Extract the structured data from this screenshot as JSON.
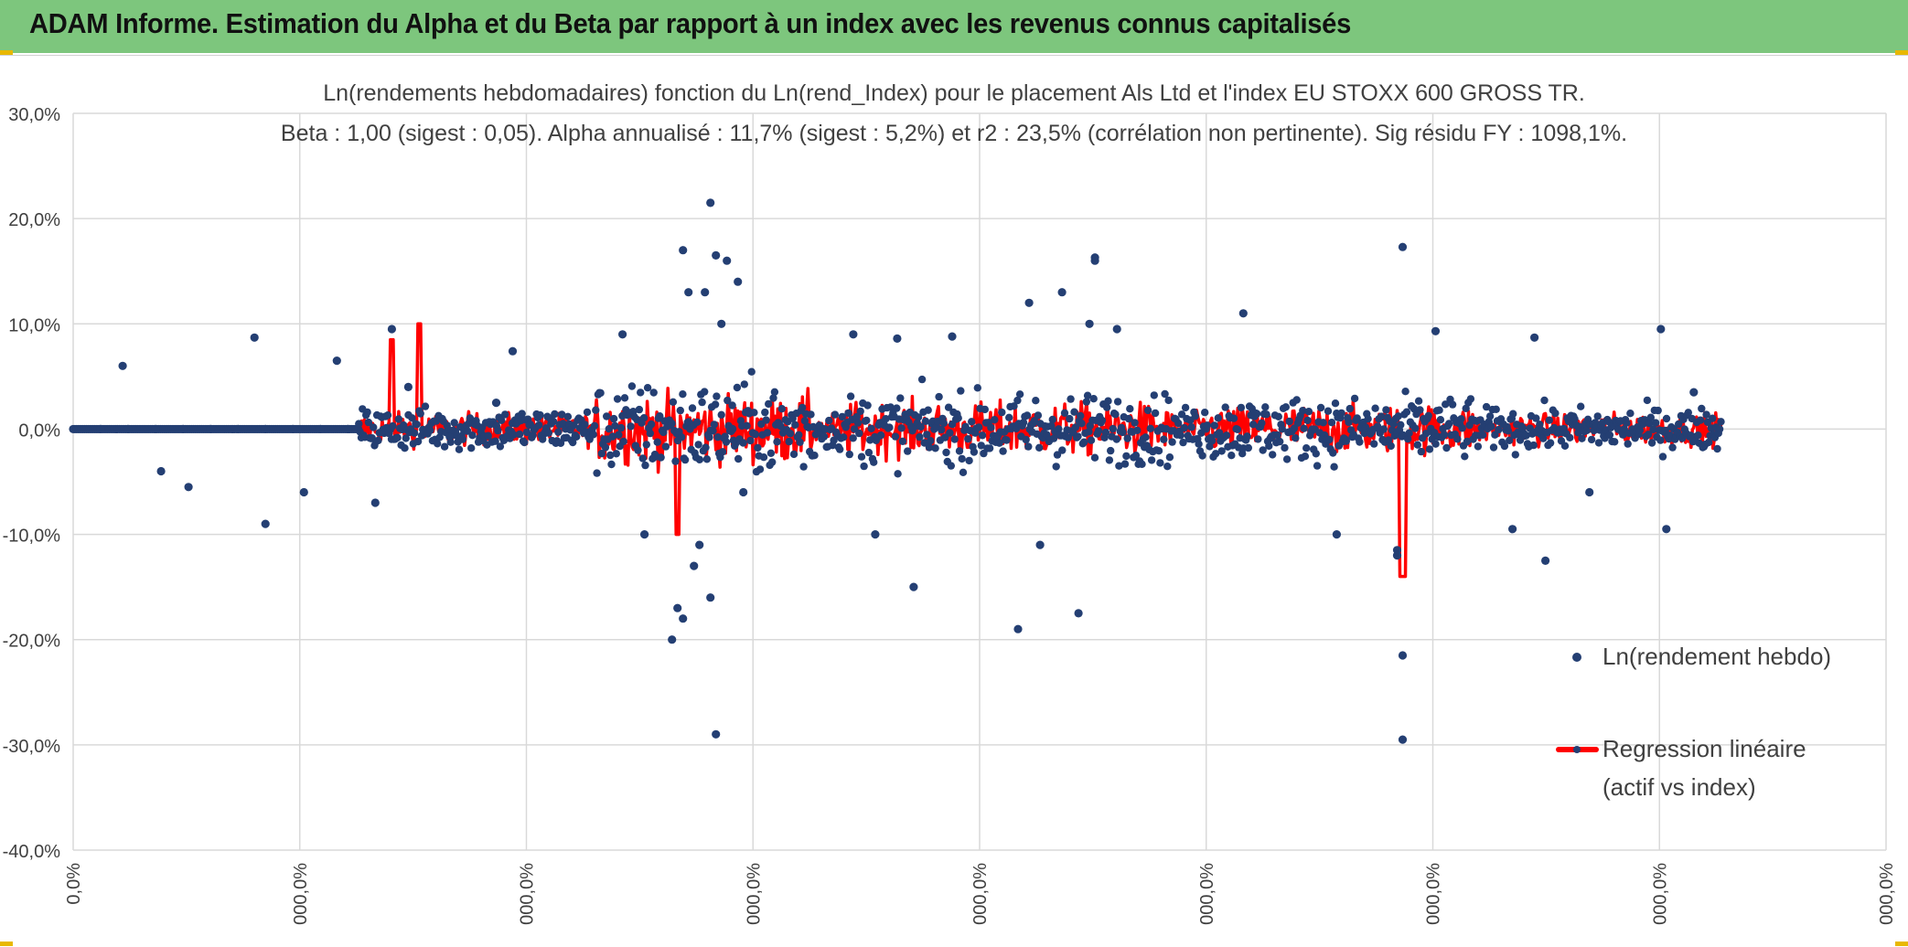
{
  "header": {
    "title": "ADAM Informe. Estimation du Alpha et du Beta par rapport à un index avec les revenus connus capitalisés",
    "background": "#7dc67d"
  },
  "chart_data": {
    "type": "scatter",
    "title": "Ln(rendements hebdomadaires) fonction du Ln(rend_Index) pour le placement Als Ltd et l'index EU STOXX 600 GROSS TR.",
    "subtitle": "Beta : 1,00 (sigest : 0,05). Alpha annualisé : 11,7% (sigest : 5,2%) et r2 : 23,5% (corrélation non pertinente). Sig résidu FY : 1098,1%.",
    "y_ticks": [
      "30,0%",
      "20,0%",
      "10,0%",
      "0,0%",
      "-10,0%",
      "-20,0%",
      "-30,0%",
      "-40,0%"
    ],
    "x_ticks": [
      "0,0%",
      "000,0%",
      "000,0%",
      "000,0%",
      "000,0%",
      "000,0%",
      "000,0%",
      "000,0%",
      "000,0%"
    ],
    "ylim": [
      -0.4,
      0.3
    ],
    "grid": true,
    "legend_position": "right",
    "series": [
      {
        "name": "Ln(rendement hebdo)",
        "kind": "scatter",
        "color": "#243f73",
        "points": [
          [
            5,
            0.0
          ],
          [
            10,
            0.0
          ],
          [
            15,
            0.0
          ],
          [
            20,
            0.0
          ],
          [
            25,
            0.0
          ],
          [
            30,
            0.0
          ],
          [
            35,
            0.0
          ],
          [
            40,
            0.0
          ],
          [
            45,
            0.0
          ],
          [
            50,
            0.0
          ],
          [
            9,
            0.06
          ],
          [
            16,
            -0.04
          ],
          [
            21,
            -0.055
          ],
          [
            33,
            0.087
          ],
          [
            35,
            -0.09
          ],
          [
            42,
            -0.06
          ],
          [
            48,
            0.065
          ],
          [
            55,
            -0.07
          ],
          [
            58,
            0.095
          ],
          [
            61,
            0.04
          ],
          [
            77,
            0.025
          ],
          [
            80,
            0.074
          ],
          [
            100,
            0.09
          ],
          [
            104,
            -0.1
          ],
          [
            120,
            0.0
          ],
          [
            122,
            -0.06
          ],
          [
            109,
            -0.2
          ],
          [
            110,
            -0.17
          ],
          [
            111,
            -0.18
          ],
          [
            111,
            0.17
          ],
          [
            112,
            0.13
          ],
          [
            113,
            -0.13
          ],
          [
            114,
            -0.11
          ],
          [
            115,
            0.13
          ],
          [
            116,
            0.215
          ],
          [
            116,
            -0.16
          ],
          [
            117,
            -0.29
          ],
          [
            117,
            0.165
          ],
          [
            118,
            0.1
          ],
          [
            119,
            0.16
          ],
          [
            121,
            0.14
          ],
          [
            142,
            0.09
          ],
          [
            146,
            -0.1
          ],
          [
            150,
            0.086
          ],
          [
            153,
            -0.15
          ],
          [
            160,
            0.088
          ],
          [
            172,
            -0.19
          ],
          [
            174,
            0.12
          ],
          [
            176,
            -0.11
          ],
          [
            180,
            0.13
          ],
          [
            183,
            -0.175
          ],
          [
            185,
            0.1
          ],
          [
            186,
            0.16
          ],
          [
            186,
            0.163
          ],
          [
            190,
            0.095
          ],
          [
            213,
            0.11
          ],
          [
            230,
            -0.1
          ],
          [
            241,
            -0.115
          ],
          [
            241,
            -0.12
          ],
          [
            242,
            -0.215
          ],
          [
            242,
            -0.295
          ],
          [
            242,
            0.173
          ],
          [
            248,
            0.093
          ],
          [
            262,
            -0.095
          ],
          [
            266,
            0.087
          ],
          [
            268,
            -0.125
          ],
          [
            276,
            -0.06
          ],
          [
            289,
            0.095
          ],
          [
            290,
            -0.095
          ],
          [
            295,
            0.035
          ]
        ]
      },
      {
        "name": "Regression linéaire",
        "name_line2": "(actif vs index)",
        "kind": "line",
        "color": "#ff0000"
      }
    ]
  }
}
